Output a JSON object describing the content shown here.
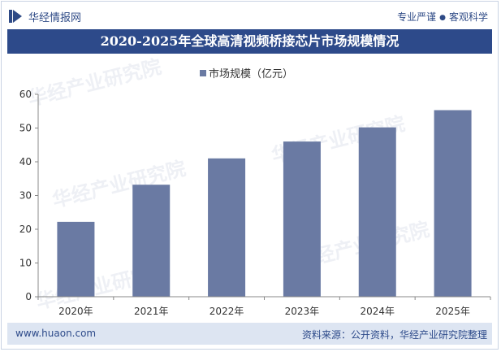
{
  "header": {
    "brand": "华经情报网",
    "tagline_left": "专业严谨",
    "tagline_right": "客观科学"
  },
  "title": "2020-2025年全球高清视频桥接芯片市场规模情况",
  "watermark": "华经产业研究院",
  "chart_data": {
    "type": "bar",
    "categories": [
      "2020年",
      "2021年",
      "2022年",
      "2023年",
      "2024年",
      "2025年"
    ],
    "series": [
      {
        "name": "市场规模（亿元）",
        "values": [
          22.2,
          33.2,
          41.0,
          46.0,
          50.2,
          55.3
        ]
      }
    ],
    "ylim": [
      0,
      60
    ],
    "yticks": [
      0,
      10,
      20,
      30,
      40,
      50,
      60
    ],
    "legend_position": "top-center",
    "bar_color": "#6a7aa3",
    "grid": false
  },
  "footer": {
    "site": "www.huaon.com",
    "source": "资料来源：公开资料，华经产业研究院整理"
  },
  "colors": {
    "title_bg": "#2d4a8a",
    "footer_bg": "#dde5f2",
    "bar": "#6a7aa3",
    "brand_text": "#2e4a86"
  }
}
